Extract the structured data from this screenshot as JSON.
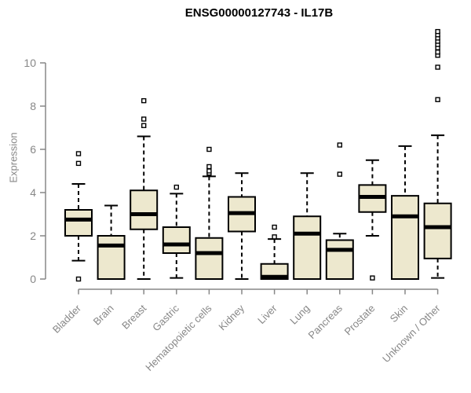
{
  "chart_data": {
    "type": "boxplot",
    "title": "ENSG00000127743 - IL17B",
    "ylabel": "Expression",
    "xlabel": "",
    "yticks": [
      0,
      2,
      4,
      6,
      8,
      10
    ],
    "ylim": [
      0,
      11.6
    ],
    "grid": "off",
    "legend": "none",
    "categories": [
      "Bladder",
      "Brain",
      "Breast",
      "Gastric",
      "Hematopoietic cells",
      "Kidney",
      "Liver",
      "Lung",
      "Pancreas",
      "Prostate",
      "Skin",
      "Unknown / Other"
    ],
    "boxes": [
      {
        "category": "Bladder",
        "whisker_low": 0.85,
        "q1": 2.0,
        "median": 2.75,
        "q3": 3.2,
        "whisker_high": 4.4,
        "outliers": [
          0.0,
          5.35,
          5.8
        ]
      },
      {
        "category": "Brain",
        "whisker_low": 0.0,
        "q1": 0.0,
        "median": 1.55,
        "q3": 2.0,
        "whisker_high": 3.4,
        "outliers": []
      },
      {
        "category": "Breast",
        "whisker_low": 0.0,
        "q1": 2.3,
        "median": 3.0,
        "q3": 4.1,
        "whisker_high": 6.6,
        "outliers": [
          7.1,
          7.4,
          8.25
        ]
      },
      {
        "category": "Gastric",
        "whisker_low": 0.05,
        "q1": 1.2,
        "median": 1.6,
        "q3": 2.4,
        "whisker_high": 3.95,
        "outliers": [
          4.25
        ]
      },
      {
        "category": "Hematopoietic cells",
        "whisker_low": 0.0,
        "q1": 0.0,
        "median": 1.2,
        "q3": 1.9,
        "whisker_high": 4.75,
        "outliers": [
          4.9,
          5.0,
          5.2,
          6.0
        ]
      },
      {
        "category": "Kidney",
        "whisker_low": 0.0,
        "q1": 2.2,
        "median": 3.05,
        "q3": 3.8,
        "whisker_high": 4.9,
        "outliers": []
      },
      {
        "category": "Liver",
        "whisker_low": 0.0,
        "q1": 0.0,
        "median": 0.1,
        "q3": 0.7,
        "whisker_high": 1.85,
        "outliers": [
          1.95,
          2.4
        ]
      },
      {
        "category": "Lung",
        "whisker_low": 0.0,
        "q1": 0.0,
        "median": 2.1,
        "q3": 2.9,
        "whisker_high": 4.9,
        "outliers": []
      },
      {
        "category": "Pancreas",
        "whisker_low": 0.0,
        "q1": 0.0,
        "median": 1.35,
        "q3": 1.8,
        "whisker_high": 2.1,
        "outliers": [
          4.85,
          6.2
        ]
      },
      {
        "category": "Prostate",
        "whisker_low": 2.0,
        "q1": 3.1,
        "median": 3.8,
        "q3": 4.35,
        "whisker_high": 5.5,
        "outliers": [
          0.05
        ]
      },
      {
        "category": "Skin",
        "whisker_low": 0.0,
        "q1": 0.0,
        "median": 2.9,
        "q3": 3.85,
        "whisker_high": 6.15,
        "outliers": []
      },
      {
        "category": "Unknown / Other",
        "whisker_low": 0.05,
        "q1": 0.95,
        "median": 2.4,
        "q3": 3.5,
        "whisker_high": 6.65,
        "outliers": [
          8.3,
          9.8,
          10.35,
          10.5,
          10.7,
          10.85,
          11.0,
          11.15,
          11.3,
          11.45
        ]
      }
    ],
    "colors": {
      "box_fill": "#EDE8CE",
      "box_border": "#000000",
      "median": "#000000",
      "whisker": "#000000",
      "outlier_fill": "#ffffff",
      "axis": "#878787",
      "title": "#000000",
      "background": "#ffffff"
    }
  }
}
